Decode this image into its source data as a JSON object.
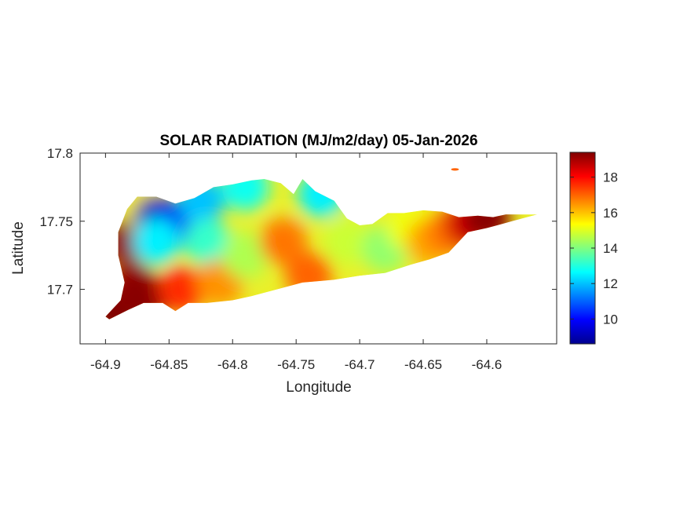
{
  "title": "SOLAR RADIATION (MJ/m2/day) 05-Jan-2026",
  "xlabel": "Longitude",
  "ylabel": "Latitude",
  "x_ticks": [
    "-64.9",
    "-64.85",
    "-64.8",
    "-64.75",
    "-64.7",
    "-64.65",
    "-64.6"
  ],
  "y_ticks": [
    "17.8",
    "17.75",
    "17.7"
  ],
  "colorbar_ticks": [
    "18",
    "16",
    "14",
    "12",
    "10"
  ],
  "colormap": "jet",
  "colormap_stops": [
    "#00008f",
    "#0000ff",
    "#00ffff",
    "#ffff00",
    "#ff0000",
    "#800000"
  ],
  "chart_data": {
    "type": "heatmap",
    "title": "SOLAR RADIATION (MJ/m2/day) 05-Jan-2026",
    "xlabel": "Longitude",
    "ylabel": "Latitude",
    "xlim": [
      -64.92,
      -64.545
    ],
    "ylim": [
      17.66,
      17.8
    ],
    "x_ticks": [
      -64.9,
      -64.85,
      -64.8,
      -64.75,
      -64.7,
      -64.65,
      -64.6
    ],
    "y_ticks": [
      17.7,
      17.75,
      17.8
    ],
    "color_range": [
      8.6,
      19.4
    ],
    "colorbar_ticks": [
      10,
      12,
      14,
      16,
      18
    ],
    "colormap": "jet",
    "island_outline": [
      [
        -64.9,
        17.68
      ],
      [
        -64.888,
        17.692
      ],
      [
        -64.885,
        17.705
      ],
      [
        -64.89,
        17.725
      ],
      [
        -64.89,
        17.742
      ],
      [
        -64.883,
        17.759
      ],
      [
        -64.875,
        17.768
      ],
      [
        -64.86,
        17.768
      ],
      [
        -64.845,
        17.763
      ],
      [
        -64.83,
        17.767
      ],
      [
        -64.815,
        17.775
      ],
      [
        -64.8,
        17.777
      ],
      [
        -64.785,
        17.78
      ],
      [
        -64.775,
        17.781
      ],
      [
        -64.762,
        17.778
      ],
      [
        -64.752,
        17.77
      ],
      [
        -64.745,
        17.781
      ],
      [
        -64.735,
        17.772
      ],
      [
        -64.72,
        17.765
      ],
      [
        -64.71,
        17.752
      ],
      [
        -64.7,
        17.747
      ],
      [
        -64.69,
        17.748
      ],
      [
        -64.678,
        17.756
      ],
      [
        -64.665,
        17.756
      ],
      [
        -64.65,
        17.758
      ],
      [
        -64.635,
        17.757
      ],
      [
        -64.622,
        17.753
      ],
      [
        -64.607,
        17.754
      ],
      [
        -64.595,
        17.753
      ],
      [
        -64.585,
        17.755
      ],
      [
        -64.56,
        17.755
      ],
      [
        -64.58,
        17.75
      ],
      [
        -64.6,
        17.745
      ],
      [
        -64.615,
        17.742
      ],
      [
        -64.63,
        17.727
      ],
      [
        -64.645,
        17.722
      ],
      [
        -64.66,
        17.718
      ],
      [
        -64.68,
        17.712
      ],
      [
        -64.7,
        17.71
      ],
      [
        -64.72,
        17.707
      ],
      [
        -64.745,
        17.705
      ],
      [
        -64.765,
        17.7
      ],
      [
        -64.785,
        17.695
      ],
      [
        -64.8,
        17.692
      ],
      [
        -64.82,
        17.69
      ],
      [
        -64.835,
        17.69
      ],
      [
        -64.845,
        17.684
      ],
      [
        -64.855,
        17.69
      ],
      [
        -64.87,
        17.69
      ],
      [
        -64.882,
        17.685
      ],
      [
        -64.897,
        17.678
      ]
    ],
    "samples": [
      {
        "lon": -64.893,
        "lat": 17.684,
        "value": 19.4
      },
      {
        "lon": -64.885,
        "lat": 17.735,
        "value": 19.2
      },
      {
        "lon": -64.878,
        "lat": 17.702,
        "value": 19.2
      },
      {
        "lon": -64.87,
        "lat": 17.693,
        "value": 19.3
      },
      {
        "lon": -64.868,
        "lat": 17.758,
        "value": 15.5
      },
      {
        "lon": -64.86,
        "lat": 17.752,
        "value": 9.0
      },
      {
        "lon": -64.845,
        "lat": 17.748,
        "value": 9.8
      },
      {
        "lon": -64.86,
        "lat": 17.735,
        "value": 12.5
      },
      {
        "lon": -64.84,
        "lat": 17.7,
        "value": 17.6
      },
      {
        "lon": -64.825,
        "lat": 17.765,
        "value": 12.0
      },
      {
        "lon": -64.82,
        "lat": 17.735,
        "value": 13.2
      },
      {
        "lon": -64.81,
        "lat": 17.705,
        "value": 16.5
      },
      {
        "lon": -64.79,
        "lat": 17.775,
        "value": 12.8
      },
      {
        "lon": -64.79,
        "lat": 17.725,
        "value": 14.5
      },
      {
        "lon": -64.76,
        "lat": 17.735,
        "value": 16.8
      },
      {
        "lon": -64.73,
        "lat": 17.77,
        "value": 12.5
      },
      {
        "lon": -64.74,
        "lat": 17.71,
        "value": 17.0
      },
      {
        "lon": -64.71,
        "lat": 17.735,
        "value": 14.8
      },
      {
        "lon": -64.68,
        "lat": 17.73,
        "value": 14.2
      },
      {
        "lon": -64.66,
        "lat": 17.745,
        "value": 15.2
      },
      {
        "lon": -64.645,
        "lat": 17.735,
        "value": 16.3
      },
      {
        "lon": -64.63,
        "lat": 17.742,
        "value": 16.8
      },
      {
        "lon": -64.615,
        "lat": 17.748,
        "value": 18.5
      },
      {
        "lon": -64.6,
        "lat": 17.752,
        "value": 19.3
      },
      {
        "lon": -64.625,
        "lat": 17.788,
        "value": 17.0
      }
    ]
  }
}
